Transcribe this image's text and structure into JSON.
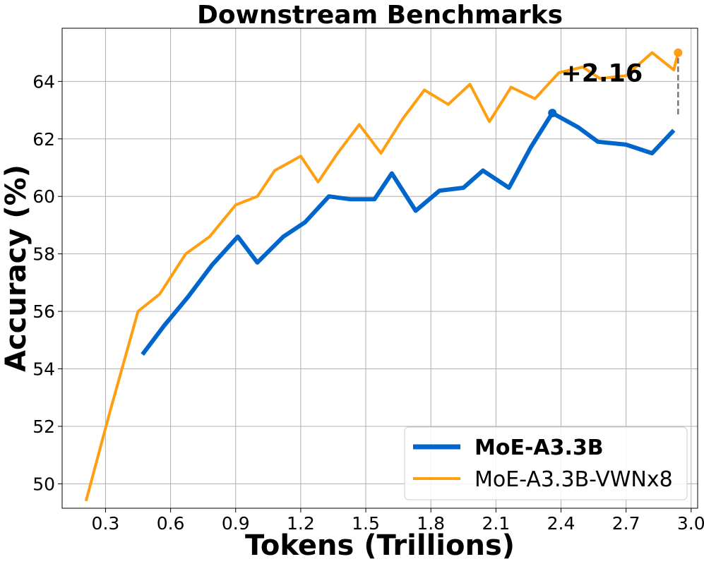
{
  "chart_data": {
    "type": "line",
    "title": "Downstream Benchmarks",
    "xlabel": "Tokens (Trillions)",
    "ylabel": "Accuracy (%)",
    "xlim": [
      0.1,
      3.03
    ],
    "ylim": [
      49.15,
      65.85
    ],
    "xticks": [
      0.3,
      0.6,
      0.9,
      1.2,
      1.5,
      1.8,
      2.1,
      2.4,
      2.7,
      3.0
    ],
    "xtick_labels": [
      "0.3",
      "0.6",
      "0.9",
      "1.2",
      "1.5",
      "1.8",
      "2.1",
      "2.4",
      "2.7",
      "3.0"
    ],
    "yticks": [
      50,
      52,
      54,
      56,
      58,
      60,
      62,
      64
    ],
    "ytick_labels": [
      "50",
      "52",
      "54",
      "56",
      "58",
      "60",
      "62",
      "64"
    ],
    "grid": true,
    "legend_position": "bottom-right",
    "series": [
      {
        "name": "MoE-A3.3B",
        "color": "#0066cc",
        "legend_bold": true,
        "x": [
          0.47,
          0.57,
          0.68,
          0.79,
          0.91,
          1.0,
          1.12,
          1.22,
          1.33,
          1.43,
          1.54,
          1.62,
          1.73,
          1.84,
          1.95,
          2.04,
          2.16,
          2.26,
          2.36,
          2.48,
          2.57,
          2.7,
          2.82,
          2.92
        ],
        "y": [
          54.5,
          55.5,
          56.5,
          57.6,
          58.6,
          57.7,
          58.6,
          59.1,
          60.0,
          59.9,
          59.9,
          60.8,
          59.5,
          60.2,
          60.3,
          60.9,
          60.3,
          61.7,
          62.9,
          62.4,
          61.9,
          61.8,
          61.5,
          62.3
        ],
        "marker": {
          "x": 2.36,
          "y": 62.9
        }
      },
      {
        "name": "MoE-A3.3B-VWNx8",
        "color": "#ff9e10",
        "legend_bold": false,
        "x": [
          0.21,
          0.32,
          0.45,
          0.55,
          0.67,
          0.78,
          0.9,
          1.0,
          1.08,
          1.2,
          1.28,
          1.37,
          1.47,
          1.57,
          1.67,
          1.77,
          1.88,
          1.98,
          2.07,
          2.17,
          2.28,
          2.39,
          2.5,
          2.58,
          2.7,
          2.82,
          2.92,
          2.94
        ],
        "y": [
          49.4,
          52.5,
          56.0,
          56.6,
          58.0,
          58.6,
          59.7,
          60.0,
          60.9,
          61.4,
          60.5,
          61.5,
          62.5,
          61.5,
          62.7,
          63.7,
          63.2,
          63.9,
          62.6,
          63.8,
          63.4,
          64.3,
          64.5,
          64.1,
          64.2,
          65.0,
          64.4,
          65.0
        ],
        "marker": {
          "x": 2.94,
          "y": 65.0
        }
      }
    ],
    "annotations": [
      {
        "text": "+2.16",
        "x": 2.4,
        "y": 64.0
      }
    ],
    "gap_line": {
      "x": 2.94,
      "y1": 62.85,
      "y2": 65.0
    }
  }
}
